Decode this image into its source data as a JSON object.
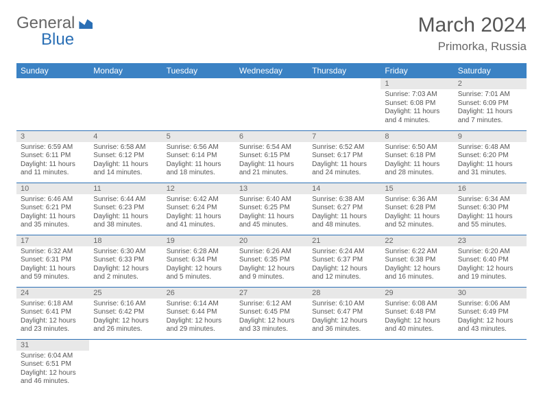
{
  "header": {
    "logo_general": "General",
    "logo_blue": "Blue",
    "month_title": "March 2024",
    "location": "Primorka, Russia"
  },
  "styling": {
    "header_bg": "#3b82c4",
    "header_text": "#ffffff",
    "daynum_bg": "#e8e8e8",
    "border_color": "#2a6fb5",
    "body_text": "#555555",
    "page_bg": "#ffffff",
    "logo_blue_color": "#2a6fb5",
    "logo_gray_color": "#666666",
    "month_title_fontsize": 30,
    "location_fontsize": 17,
    "th_fontsize": 12,
    "daynum_fontsize": 11,
    "content_fontsize": 10
  },
  "day_headers": [
    "Sunday",
    "Monday",
    "Tuesday",
    "Wednesday",
    "Thursday",
    "Friday",
    "Saturday"
  ],
  "weeks": [
    [
      null,
      null,
      null,
      null,
      null,
      {
        "num": "1",
        "sunrise": "Sunrise: 7:03 AM",
        "sunset": "Sunset: 6:08 PM",
        "daylight": "Daylight: 11 hours and 4 minutes."
      },
      {
        "num": "2",
        "sunrise": "Sunrise: 7:01 AM",
        "sunset": "Sunset: 6:09 PM",
        "daylight": "Daylight: 11 hours and 7 minutes."
      }
    ],
    [
      {
        "num": "3",
        "sunrise": "Sunrise: 6:59 AM",
        "sunset": "Sunset: 6:11 PM",
        "daylight": "Daylight: 11 hours and 11 minutes."
      },
      {
        "num": "4",
        "sunrise": "Sunrise: 6:58 AM",
        "sunset": "Sunset: 6:12 PM",
        "daylight": "Daylight: 11 hours and 14 minutes."
      },
      {
        "num": "5",
        "sunrise": "Sunrise: 6:56 AM",
        "sunset": "Sunset: 6:14 PM",
        "daylight": "Daylight: 11 hours and 18 minutes."
      },
      {
        "num": "6",
        "sunrise": "Sunrise: 6:54 AM",
        "sunset": "Sunset: 6:15 PM",
        "daylight": "Daylight: 11 hours and 21 minutes."
      },
      {
        "num": "7",
        "sunrise": "Sunrise: 6:52 AM",
        "sunset": "Sunset: 6:17 PM",
        "daylight": "Daylight: 11 hours and 24 minutes."
      },
      {
        "num": "8",
        "sunrise": "Sunrise: 6:50 AM",
        "sunset": "Sunset: 6:18 PM",
        "daylight": "Daylight: 11 hours and 28 minutes."
      },
      {
        "num": "9",
        "sunrise": "Sunrise: 6:48 AM",
        "sunset": "Sunset: 6:20 PM",
        "daylight": "Daylight: 11 hours and 31 minutes."
      }
    ],
    [
      {
        "num": "10",
        "sunrise": "Sunrise: 6:46 AM",
        "sunset": "Sunset: 6:21 PM",
        "daylight": "Daylight: 11 hours and 35 minutes."
      },
      {
        "num": "11",
        "sunrise": "Sunrise: 6:44 AM",
        "sunset": "Sunset: 6:23 PM",
        "daylight": "Daylight: 11 hours and 38 minutes."
      },
      {
        "num": "12",
        "sunrise": "Sunrise: 6:42 AM",
        "sunset": "Sunset: 6:24 PM",
        "daylight": "Daylight: 11 hours and 41 minutes."
      },
      {
        "num": "13",
        "sunrise": "Sunrise: 6:40 AM",
        "sunset": "Sunset: 6:25 PM",
        "daylight": "Daylight: 11 hours and 45 minutes."
      },
      {
        "num": "14",
        "sunrise": "Sunrise: 6:38 AM",
        "sunset": "Sunset: 6:27 PM",
        "daylight": "Daylight: 11 hours and 48 minutes."
      },
      {
        "num": "15",
        "sunrise": "Sunrise: 6:36 AM",
        "sunset": "Sunset: 6:28 PM",
        "daylight": "Daylight: 11 hours and 52 minutes."
      },
      {
        "num": "16",
        "sunrise": "Sunrise: 6:34 AM",
        "sunset": "Sunset: 6:30 PM",
        "daylight": "Daylight: 11 hours and 55 minutes."
      }
    ],
    [
      {
        "num": "17",
        "sunrise": "Sunrise: 6:32 AM",
        "sunset": "Sunset: 6:31 PM",
        "daylight": "Daylight: 11 hours and 59 minutes."
      },
      {
        "num": "18",
        "sunrise": "Sunrise: 6:30 AM",
        "sunset": "Sunset: 6:33 PM",
        "daylight": "Daylight: 12 hours and 2 minutes."
      },
      {
        "num": "19",
        "sunrise": "Sunrise: 6:28 AM",
        "sunset": "Sunset: 6:34 PM",
        "daylight": "Daylight: 12 hours and 5 minutes."
      },
      {
        "num": "20",
        "sunrise": "Sunrise: 6:26 AM",
        "sunset": "Sunset: 6:35 PM",
        "daylight": "Daylight: 12 hours and 9 minutes."
      },
      {
        "num": "21",
        "sunrise": "Sunrise: 6:24 AM",
        "sunset": "Sunset: 6:37 PM",
        "daylight": "Daylight: 12 hours and 12 minutes."
      },
      {
        "num": "22",
        "sunrise": "Sunrise: 6:22 AM",
        "sunset": "Sunset: 6:38 PM",
        "daylight": "Daylight: 12 hours and 16 minutes."
      },
      {
        "num": "23",
        "sunrise": "Sunrise: 6:20 AM",
        "sunset": "Sunset: 6:40 PM",
        "daylight": "Daylight: 12 hours and 19 minutes."
      }
    ],
    [
      {
        "num": "24",
        "sunrise": "Sunrise: 6:18 AM",
        "sunset": "Sunset: 6:41 PM",
        "daylight": "Daylight: 12 hours and 23 minutes."
      },
      {
        "num": "25",
        "sunrise": "Sunrise: 6:16 AM",
        "sunset": "Sunset: 6:42 PM",
        "daylight": "Daylight: 12 hours and 26 minutes."
      },
      {
        "num": "26",
        "sunrise": "Sunrise: 6:14 AM",
        "sunset": "Sunset: 6:44 PM",
        "daylight": "Daylight: 12 hours and 29 minutes."
      },
      {
        "num": "27",
        "sunrise": "Sunrise: 6:12 AM",
        "sunset": "Sunset: 6:45 PM",
        "daylight": "Daylight: 12 hours and 33 minutes."
      },
      {
        "num": "28",
        "sunrise": "Sunrise: 6:10 AM",
        "sunset": "Sunset: 6:47 PM",
        "daylight": "Daylight: 12 hours and 36 minutes."
      },
      {
        "num": "29",
        "sunrise": "Sunrise: 6:08 AM",
        "sunset": "Sunset: 6:48 PM",
        "daylight": "Daylight: 12 hours and 40 minutes."
      },
      {
        "num": "30",
        "sunrise": "Sunrise: 6:06 AM",
        "sunset": "Sunset: 6:49 PM",
        "daylight": "Daylight: 12 hours and 43 minutes."
      }
    ],
    [
      {
        "num": "31",
        "sunrise": "Sunrise: 6:04 AM",
        "sunset": "Sunset: 6:51 PM",
        "daylight": "Daylight: 12 hours and 46 minutes."
      },
      null,
      null,
      null,
      null,
      null,
      null
    ]
  ]
}
